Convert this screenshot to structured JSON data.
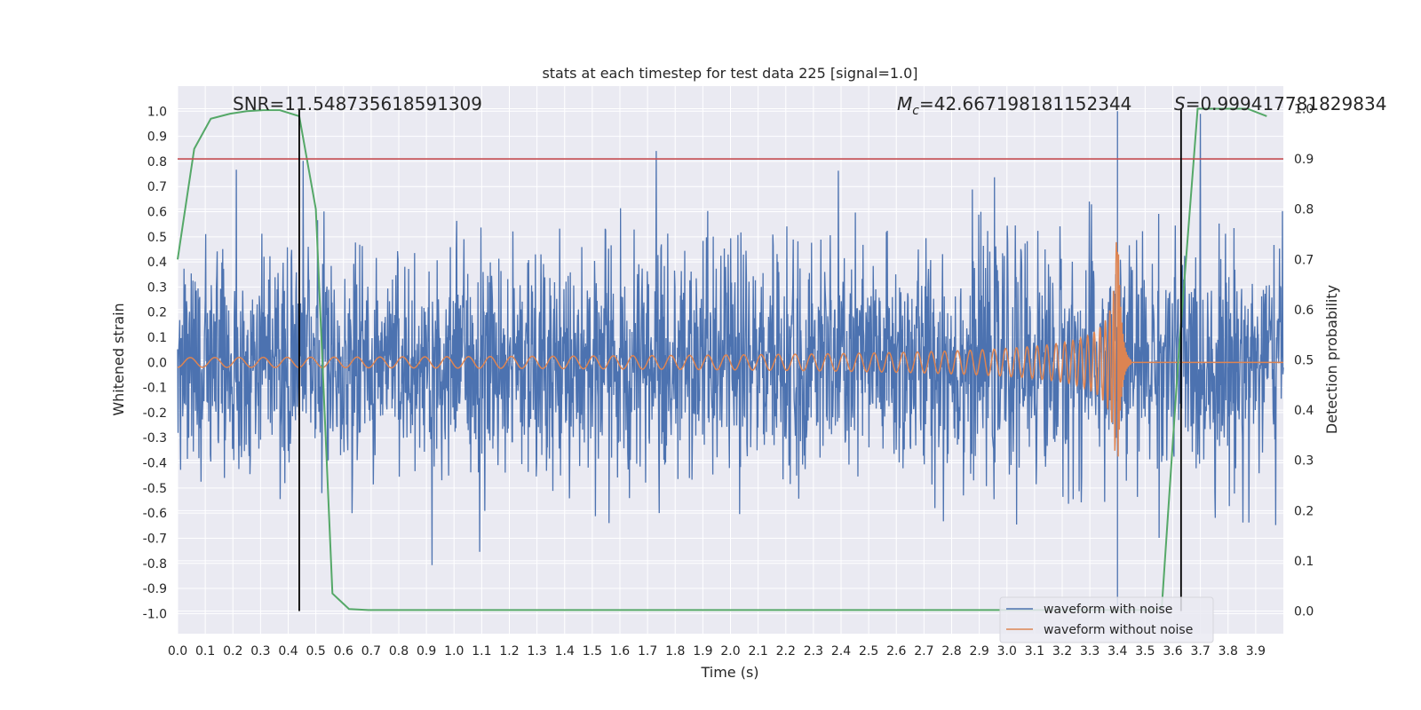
{
  "chart_data": {
    "type": "line",
    "title": "stats at each timestep for test data 225 [signal=1.0]",
    "xlabel": "Time (s)",
    "ylabel_left": "Whitened strain",
    "ylabel_right": "Detection probability",
    "xlim": [
      0.0,
      4.0
    ],
    "ylim_left": [
      -1.08,
      1.1
    ],
    "ylim_right": [
      -0.045,
      1.045
    ],
    "grid": true,
    "x_ticks": [
      "0.0",
      "0.1",
      "0.2",
      "0.3",
      "0.4",
      "0.5",
      "0.6",
      "0.7",
      "0.8",
      "0.9",
      "1.0",
      "1.1",
      "1.2",
      "1.3",
      "1.4",
      "1.5",
      "1.6",
      "1.7",
      "1.8",
      "1.9",
      "2.0",
      "2.1",
      "2.2",
      "2.3",
      "2.4",
      "2.5",
      "2.6",
      "2.7",
      "2.8",
      "2.9",
      "3.0",
      "3.1",
      "3.2",
      "3.3",
      "3.4",
      "3.5",
      "3.6",
      "3.7",
      "3.8",
      "3.9"
    ],
    "y_ticks_left": [
      "-1.0",
      "-0.9",
      "-0.8",
      "-0.7",
      "-0.6",
      "-0.5",
      "-0.4",
      "-0.3",
      "-0.2",
      "-0.1",
      "0.0",
      "0.1",
      "0.2",
      "0.3",
      "0.4",
      "0.5",
      "0.6",
      "0.7",
      "0.8",
      "0.9",
      "1.0"
    ],
    "y_ticks_right": [
      "0.0",
      "0.1",
      "0.2",
      "0.3",
      "0.4",
      "0.5",
      "0.6",
      "0.7",
      "0.8",
      "0.9",
      "1.0"
    ],
    "annotations": {
      "snr": "SNR=11.548735618591309",
      "mc_symbol": "M",
      "mc_sub": "c",
      "mc_value": "=42.667198181152344",
      "s_symbol": "S",
      "s_value": "=0.999417781829834"
    },
    "threshold_right": 0.9,
    "vlines_x": [
      0.44,
      3.63
    ],
    "legend": {
      "position": "lower-right",
      "entries": [
        "waveform with noise",
        "waveform without noise"
      ]
    },
    "series": [
      {
        "name": "waveform with noise",
        "color": "#4c72b0",
        "axis": "left",
        "kind": "noise",
        "envelope_typical": 0.42,
        "min": -0.97,
        "max": 1.0
      },
      {
        "name": "waveform without noise",
        "color": "#dd8452",
        "axis": "left",
        "kind": "chirp",
        "merger_time": 3.4,
        "peak_amplitude": 0.62
      },
      {
        "name": "",
        "color": "#55a868",
        "axis": "right",
        "x": [
          0.0,
          0.06,
          0.12,
          0.19,
          0.25,
          0.31,
          0.37,
          0.44,
          0.5,
          0.56,
          0.62,
          0.69,
          0.75,
          1.0,
          1.5,
          2.0,
          2.5,
          3.0,
          3.5,
          3.56,
          3.62,
          3.69,
          3.75,
          3.81,
          3.87,
          3.94
        ],
        "y": [
          0.7,
          0.92,
          0.98,
          0.99,
          0.995,
          0.997,
          0.997,
          0.985,
          0.8,
          0.035,
          0.004,
          0.002,
          0.002,
          0.002,
          0.002,
          0.002,
          0.002,
          0.002,
          0.002,
          0.005,
          0.5,
          1.0,
          1.0,
          1.0,
          1.0,
          0.985
        ]
      }
    ],
    "colors": {
      "axes_bg": "#eaeaf2",
      "grid": "#ffffff",
      "threshold": "#c44e52",
      "vline": "#000000"
    }
  }
}
